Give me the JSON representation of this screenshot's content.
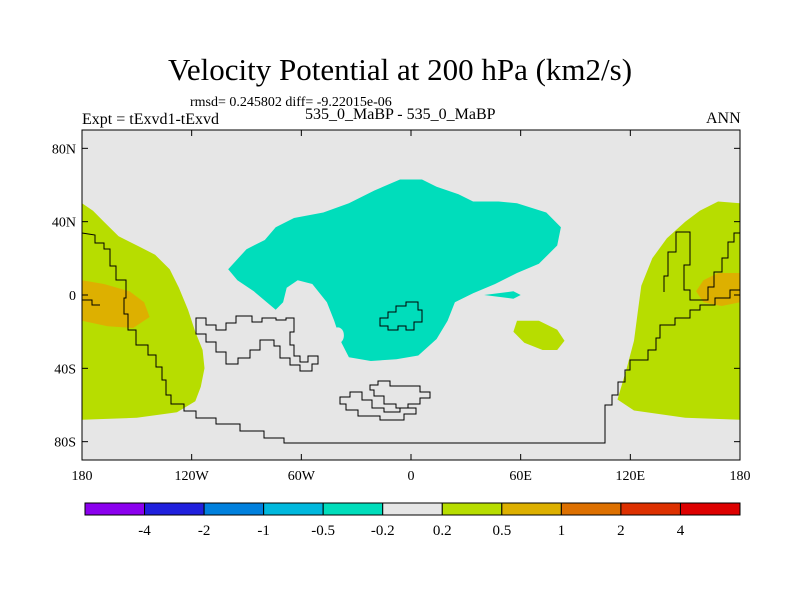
{
  "chart_data": {
    "type": "contour-map",
    "title": "Velocity Potential at 200 hPa (km2/s)",
    "stats_text": "rmsd= 0.245802 diff= -9.22015e-06",
    "left_label": "Expt = tExvd1-tExvd",
    "center_label": "535_0_MaBP - 535_0_MaBP",
    "right_label": "ANN",
    "projection": "cylindrical equidistant",
    "xlim": [
      -180,
      180
    ],
    "ylim": [
      -90,
      90
    ],
    "x_ticks": [
      {
        "value": -180,
        "label": "180"
      },
      {
        "value": -120,
        "label": "120W"
      },
      {
        "value": -60,
        "label": "60W"
      },
      {
        "value": 0,
        "label": "0"
      },
      {
        "value": 60,
        "label": "60E"
      },
      {
        "value": 120,
        "label": "120E"
      },
      {
        "value": 180,
        "label": "180"
      }
    ],
    "y_ticks": [
      {
        "value": 80,
        "label": "80N"
      },
      {
        "value": 40,
        "label": "40N"
      },
      {
        "value": 0,
        "label": "0"
      },
      {
        "value": -40,
        "label": "40S"
      },
      {
        "value": -80,
        "label": "80S"
      }
    ],
    "background_level_color": "#e6e6e6",
    "regions": [
      {
        "name": "negative-anomaly-central",
        "range": [
          -0.5,
          -0.2
        ],
        "color": "#00ddbb",
        "points": [
          [
            -80,
            30
          ],
          [
            -74,
            37
          ],
          [
            -64,
            42
          ],
          [
            -48,
            45
          ],
          [
            -34,
            50
          ],
          [
            -20,
            57
          ],
          [
            -6,
            63
          ],
          [
            6,
            63
          ],
          [
            14,
            59
          ],
          [
            26,
            55
          ],
          [
            34,
            51
          ],
          [
            48,
            51
          ],
          [
            58,
            50
          ],
          [
            74,
            45
          ],
          [
            82,
            37
          ],
          [
            80,
            27
          ],
          [
            70,
            17
          ],
          [
            58,
            12
          ],
          [
            46,
            6
          ],
          [
            34,
            1
          ],
          [
            24,
            -4
          ],
          [
            20,
            -14
          ],
          [
            14,
            -24
          ],
          [
            4,
            -33
          ],
          [
            -8,
            -35
          ],
          [
            -22,
            -36
          ],
          [
            -34,
            -34
          ],
          [
            -38,
            -26
          ],
          [
            -42,
            -14
          ],
          [
            -46,
            -4
          ],
          [
            -54,
            6
          ],
          [
            -62,
            8
          ],
          [
            -68,
            4
          ],
          [
            -70,
            -4
          ],
          [
            -74,
            -8
          ],
          [
            -86,
            2
          ],
          [
            -95,
            8
          ],
          [
            -100,
            14
          ],
          [
            -90,
            25
          ]
        ]
      },
      {
        "name": "negative-anomaly-wedge",
        "range": [
          -0.5,
          -0.2
        ],
        "color": "#00ddbb",
        "points": [
          [
            40,
            0
          ],
          [
            56,
            -2
          ],
          [
            60,
            0
          ],
          [
            56,
            2
          ]
        ]
      },
      {
        "name": "positive-anomaly-west",
        "range": [
          0.2,
          0.5
        ],
        "color": "#b7dd00",
        "points": [
          [
            -180,
            50
          ],
          [
            -174,
            46
          ],
          [
            -168,
            40
          ],
          [
            -160,
            32
          ],
          [
            -148,
            26
          ],
          [
            -140,
            22
          ],
          [
            -132,
            14
          ],
          [
            -127,
            4
          ],
          [
            -122,
            -8
          ],
          [
            -118,
            -20
          ],
          [
            -114,
            -30
          ],
          [
            -113,
            -40
          ],
          [
            -115,
            -50
          ],
          [
            -118,
            -58
          ],
          [
            -128,
            -64
          ],
          [
            -150,
            -67
          ],
          [
            -180,
            -68
          ]
        ]
      },
      {
        "name": "positive-anomaly-east",
        "range": [
          0.2,
          0.5
        ],
        "color": "#b7dd00",
        "points": [
          [
            180,
            50
          ],
          [
            168,
            51
          ],
          [
            158,
            46
          ],
          [
            150,
            40
          ],
          [
            140,
            31
          ],
          [
            132,
            20
          ],
          [
            126,
            5
          ],
          [
            124,
            -10
          ],
          [
            122,
            -25
          ],
          [
            118,
            -40
          ],
          [
            113,
            -57
          ],
          [
            122,
            -63
          ],
          [
            150,
            -67
          ],
          [
            180,
            -68
          ]
        ]
      },
      {
        "name": "positive-anomaly-south-atlantic",
        "range": [
          0.2,
          0.5
        ],
        "color": "#b7dd00",
        "points": [
          [
            58,
            -14
          ],
          [
            70,
            -14
          ],
          [
            80,
            -19
          ],
          [
            84,
            -25
          ],
          [
            80,
            -30
          ],
          [
            72,
            -30
          ],
          [
            62,
            -26
          ],
          [
            56,
            -20
          ]
        ]
      },
      {
        "name": "strong-positive-west",
        "range": [
          0.5,
          1
        ],
        "color": "#ddb000",
        "points": [
          [
            -180,
            8
          ],
          [
            -168,
            6
          ],
          [
            -154,
            2
          ],
          [
            -146,
            -4
          ],
          [
            -143,
            -12
          ],
          [
            -152,
            -18
          ],
          [
            -166,
            -17
          ],
          [
            -180,
            -14
          ]
        ]
      },
      {
        "name": "strong-positive-east",
        "range": [
          0.5,
          1
        ],
        "color": "#ddb000",
        "points": [
          [
            180,
            12
          ],
          [
            168,
            12
          ],
          [
            160,
            8
          ],
          [
            156,
            2
          ],
          [
            160,
            -4
          ],
          [
            170,
            -6
          ],
          [
            180,
            -4
          ]
        ]
      }
    ],
    "colorbar": {
      "colors": [
        "#8b00ee",
        "#2020dd",
        "#0080dd",
        "#00b8dd",
        "#00ddbb",
        "#e6e6e6",
        "#b7dd00",
        "#ddb000",
        "#dd7000",
        "#dd3000",
        "#dd0000"
      ],
      "tick_labels": [
        "-4",
        "-2",
        "-1",
        "-0.5",
        "-0.2",
        "0.2",
        "0.5",
        "1",
        "2",
        "4"
      ]
    }
  }
}
